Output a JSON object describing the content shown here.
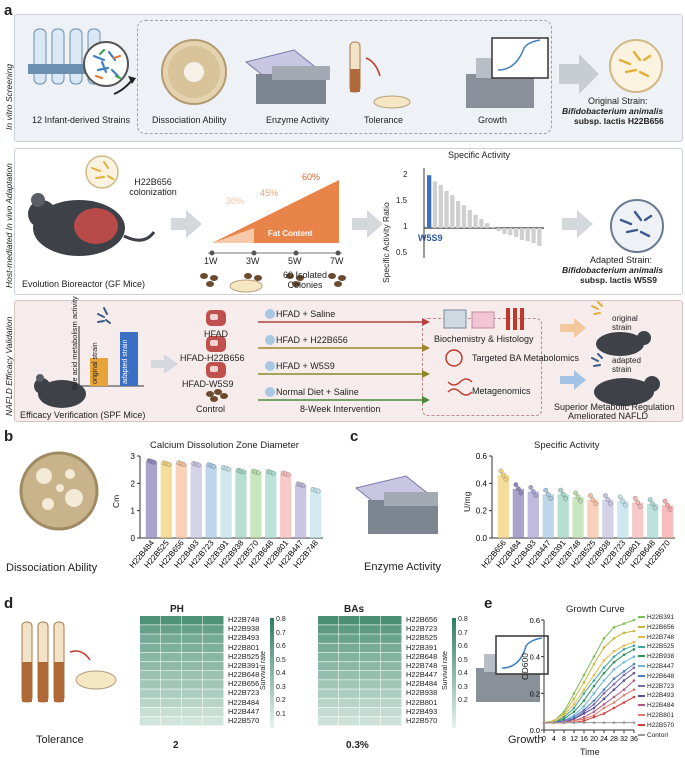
{
  "panel_a": {
    "letter": "a",
    "row1": {
      "side_label": "In vitro Screening",
      "strains_label": "12 Infant-derived Strains",
      "steps": [
        "Dissociation Ability",
        "Enzyme Activity",
        "Tolerance",
        "Growth"
      ],
      "result_title": "Original Strain:",
      "result_species": "Bifidobacterium animalis",
      "result_subsp": "subsp. lactis H22B656"
    },
    "row2": {
      "side_label": "Host-mediated In vivo Adaptation",
      "colonization": "H22B656 colonization",
      "reactor": "Evolution Bioreactor (GF Mice)",
      "fat_levels": [
        "30%",
        "45%",
        "60%"
      ],
      "fat_title": "Fat Content",
      "weeks": [
        "1W",
        "3W",
        "5W",
        "7W"
      ],
      "colonies": "60 Isolated Colonies",
      "chart_title": "Specific Activity",
      "chart_ylabel": "Specific Activity Ratio",
      "chart_ticks": [
        "2",
        "1.5",
        "1",
        "0.5"
      ],
      "highlight": "W5S9",
      "result_title": "Adapted Strain:",
      "result_species": "Bifidobacterium animalis",
      "result_subsp": "subsp. lactis  W5S9"
    },
    "row3": {
      "side_label": "NAFLD Efficacy Validation",
      "bile_label": "Bile acid metabolism activity",
      "bar_original": "original strain",
      "bar_adapted": "adapted strain",
      "verify": "Efficacy Verification (SPF Mice)",
      "groups": [
        "HFAD",
        "HFAD-H22B656",
        "HFAD-W5S9",
        "Control"
      ],
      "treatments": [
        "HFAD + Saline",
        "HFAD + H22B656",
        "HFAD + W5S9",
        "Normal Diet + Saline"
      ],
      "intervention": "8-Week Intervention",
      "analyses": [
        "Biochemistry & Histology",
        "Targeted BA Metabolomics",
        "Metagenomics"
      ],
      "mouse_original": "original strain",
      "mouse_adapted": "adapted strain",
      "conclusion1": "Superior Metabolic Regulation",
      "conclusion2": "Ameliorated NAFLD"
    }
  },
  "panel_b": {
    "letter": "b",
    "caption": "Dissociation Ability",
    "colors": [
      "#8f85b8",
      "#f1d27b",
      "#f6c1a0",
      "#c5c3df",
      "#a9c7e2",
      "#bfe0e9",
      "#9fd4c2",
      "#b7dea9",
      "#a6d8d0",
      "#f4b8b5",
      "#b7b2d8",
      "#c3e3ea",
      "#8ed1b5"
    ]
  },
  "panel_c": {
    "letter": "c",
    "caption": "Enzyme Activity"
  },
  "panel_d": {
    "letter": "d",
    "caption": "Tolerance",
    "ph": {
      "title": "PH",
      "xlabel": "2",
      "rows": [
        "H22B748",
        "H22B938",
        "H22B493",
        "H22B801",
        "H22B525",
        "H22B391",
        "H22B648",
        "H22B656",
        "H22B723",
        "H22B484",
        "H22B447",
        "H22B570"
      ],
      "values": [
        0.82,
        0.7,
        0.62,
        0.58,
        0.52,
        0.48,
        0.42,
        0.38,
        0.32,
        0.26,
        0.18,
        0.12
      ],
      "scale_label": "Survival rate",
      "scale_ticks": [
        "0.8",
        "0.7",
        "0.6",
        "0.5",
        "0.4",
        "0.3",
        "0.2",
        "0.1"
      ]
    },
    "bas": {
      "title": "BAs",
      "xlabel": "0.3%",
      "rows": [
        "H22B656",
        "H22B723",
        "H22B525",
        "H22B391",
        "H22B648",
        "H22B748",
        "H22B447",
        "H22B484",
        "H22B938",
        "H22B801",
        "H22B493",
        "H22B570"
      ],
      "values": [
        0.85,
        0.75,
        0.68,
        0.6,
        0.55,
        0.5,
        0.45,
        0.38,
        0.32,
        0.26,
        0.2,
        0.14
      ],
      "scale_label": "Survival rate",
      "scale_ticks": [
        "0.8",
        "0.7",
        "0.6",
        "0.5",
        "0.4",
        "0.3",
        "0.2"
      ]
    }
  },
  "panel_e": {
    "letter": "e",
    "caption": "Growth"
  },
  "chart_data": [
    {
      "type": "bar",
      "title": "Calcium Dissolution Zone Diameter",
      "ylabel": "Cm",
      "xlabel": "",
      "ylim": [
        0,
        3
      ],
      "yticks": [
        0,
        1,
        2,
        3
      ],
      "categories": [
        "H22B484",
        "H22B525",
        "H22B656",
        "H22B493",
        "H22B723",
        "H22B391",
        "H22B938",
        "H22B570",
        "H22B648",
        "H22B801",
        "H22B447",
        "H22B748"
      ],
      "values": [
        2.8,
        2.72,
        2.72,
        2.7,
        2.65,
        2.55,
        2.45,
        2.42,
        2.4,
        2.35,
        1.95,
        1.75
      ]
    },
    {
      "type": "bar",
      "title": "Specific Activity",
      "ylabel": "U/mg",
      "xlabel": "",
      "ylim": [
        0,
        0.6
      ],
      "yticks": [
        0.0,
        0.2,
        0.4,
        0.6
      ],
      "categories": [
        "H22B656",
        "H22B484",
        "H22B493",
        "H22B447",
        "H22B391",
        "H22B748",
        "H22B525",
        "H22B938",
        "H22B723",
        "H22B801",
        "H22B648",
        "H22B570"
      ],
      "values": [
        0.46,
        0.36,
        0.34,
        0.32,
        0.32,
        0.3,
        0.28,
        0.28,
        0.27,
        0.26,
        0.25,
        0.24
      ],
      "colors": [
        "#f1d27b",
        "#8f85b8",
        "#a9a3d3",
        "#a9c7e2",
        "#9fd4c2",
        "#b7dea9",
        "#f6c1a0",
        "#c5c3df",
        "#bfe0e9",
        "#f4b8b5",
        "#a6d8d0",
        "#f3a7a5"
      ]
    },
    {
      "type": "bar",
      "title": "Specific Activity",
      "ylabel": "Specific Activity Ratio",
      "xlabel": "",
      "ylim": [
        0.5,
        2
      ],
      "highlight": "W5S9",
      "values": [
        1.88,
        1.78,
        1.72,
        1.62,
        1.55,
        1.45,
        1.38,
        1.3,
        1.22,
        1.15,
        1.08,
        1.02,
        0.95,
        0.9,
        0.88,
        0.85,
        0.8,
        0.78,
        0.75,
        0.7
      ]
    },
    {
      "type": "line",
      "title": "Growth Curve",
      "xlabel": "Time",
      "ylabel": "OD600",
      "xlim": [
        0,
        36
      ],
      "ylim": [
        0,
        0.6
      ],
      "xticks": [
        0,
        4,
        8,
        12,
        16,
        20,
        24,
        28,
        32,
        36
      ],
      "yticks": [
        0.0,
        0.2,
        0.4,
        0.6
      ],
      "x": [
        0,
        4,
        8,
        12,
        16,
        20,
        24,
        28,
        32,
        36
      ],
      "series": [
        {
          "name": "H22B391",
          "color": "#7bbf5a",
          "values": [
            0.04,
            0.05,
            0.1,
            0.2,
            0.3,
            0.4,
            0.5,
            0.56,
            0.58,
            0.6
          ]
        },
        {
          "name": "H22B656",
          "color": "#c9b63c",
          "values": [
            0.04,
            0.05,
            0.09,
            0.17,
            0.26,
            0.36,
            0.45,
            0.5,
            0.53,
            0.54
          ]
        },
        {
          "name": "H22B748",
          "color": "#e3b94a",
          "values": [
            0.04,
            0.04,
            0.08,
            0.14,
            0.22,
            0.3,
            0.38,
            0.43,
            0.46,
            0.48
          ]
        },
        {
          "name": "H22B525",
          "color": "#3aa7a0",
          "values": [
            0.04,
            0.04,
            0.07,
            0.12,
            0.2,
            0.27,
            0.34,
            0.4,
            0.44,
            0.46
          ]
        },
        {
          "name": "H22B938",
          "color": "#2f8f5b",
          "values": [
            0.04,
            0.04,
            0.06,
            0.1,
            0.16,
            0.24,
            0.31,
            0.37,
            0.41,
            0.44
          ]
        },
        {
          "name": "H22B447",
          "color": "#6fb4d8",
          "values": [
            0.04,
            0.04,
            0.05,
            0.08,
            0.13,
            0.2,
            0.27,
            0.33,
            0.37,
            0.4
          ]
        },
        {
          "name": "H22B648",
          "color": "#4b7fc0",
          "values": [
            0.04,
            0.04,
            0.05,
            0.07,
            0.11,
            0.16,
            0.22,
            0.28,
            0.32,
            0.36
          ]
        },
        {
          "name": "H22B723",
          "color": "#7a6bb0",
          "values": [
            0.04,
            0.04,
            0.05,
            0.06,
            0.1,
            0.14,
            0.2,
            0.25,
            0.3,
            0.34
          ]
        },
        {
          "name": "H22B493",
          "color": "#5a4d9a",
          "values": [
            0.04,
            0.04,
            0.04,
            0.06,
            0.09,
            0.12,
            0.17,
            0.22,
            0.27,
            0.31
          ]
        },
        {
          "name": "H22B484",
          "color": "#b05a8a",
          "values": [
            0.04,
            0.04,
            0.04,
            0.05,
            0.07,
            0.1,
            0.14,
            0.18,
            0.22,
            0.27
          ]
        },
        {
          "name": "H22B801",
          "color": "#e07a6a",
          "values": [
            0.04,
            0.04,
            0.04,
            0.05,
            0.06,
            0.08,
            0.12,
            0.15,
            0.19,
            0.22
          ]
        },
        {
          "name": "H22B570",
          "color": "#d43b3b",
          "values": [
            0.04,
            0.04,
            0.04,
            0.04,
            0.05,
            0.07,
            0.09,
            0.12,
            0.15,
            0.18
          ]
        },
        {
          "name": "Contorl",
          "color": "#999999",
          "values": [
            0.04,
            0.04,
            0.04,
            0.04,
            0.04,
            0.04,
            0.04,
            0.04,
            0.04,
            0.04
          ]
        }
      ]
    }
  ]
}
